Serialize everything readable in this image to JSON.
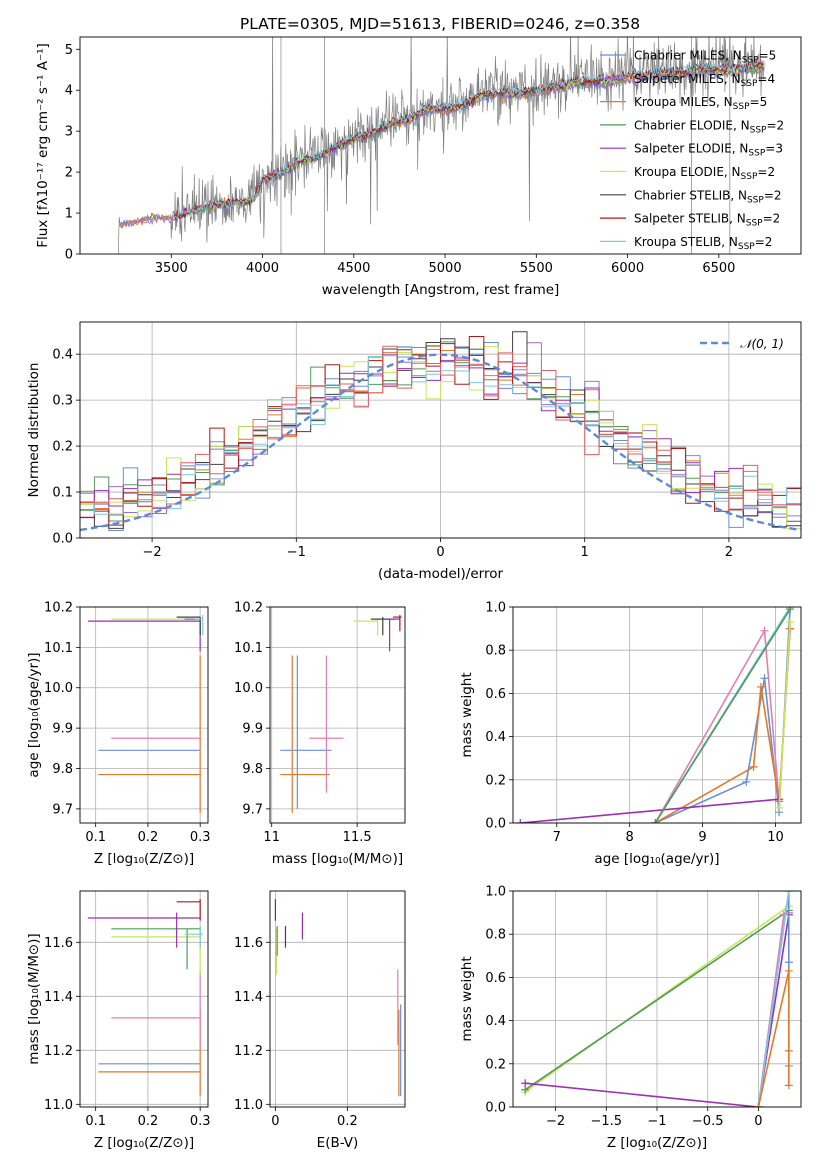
{
  "title": "PLATE=0305, MJD=51613, FIBERID=0246, z=0.358",
  "colors": {
    "chabrier_miles": "#6a8fd8",
    "salpeter_miles": "#9b6bd4",
    "kroupa_miles": "#e07a2a",
    "chabrier_elodie": "#4f9b5a",
    "salpeter_elodie": "#9a2fb0",
    "kroupa_elodie": "#c8e65a",
    "chabrier_stelib": "#404040",
    "salpeter_stelib": "#b01818",
    "kroupa_stelib": "#7fc8e0",
    "data": "#808080",
    "extra_pink": "#e080b0",
    "extra_red": "#e06060",
    "normal": "#5b8bd8"
  },
  "chart_data": [
    {
      "id": "spectrum",
      "type": "line",
      "xlabel": "wavelength [Angstrom, rest frame]",
      "ylabel": "Flux [fλ10⁻¹⁷ erg cm⁻² s⁻¹ A⁻¹]",
      "xlim": [
        3000,
        6950
      ],
      "ylim": [
        0,
        5.3
      ],
      "xticks": [
        3500,
        4000,
        4500,
        5000,
        5500,
        6000,
        6500
      ],
      "yticks": [
        0,
        1,
        2,
        3,
        4,
        5
      ],
      "grid": false,
      "legend_position": "upper right",
      "continuum": [
        [
          3210,
          0
        ],
        [
          3215,
          0.75
        ],
        [
          3300,
          0.8
        ],
        [
          3400,
          0.9
        ],
        [
          3500,
          0.9
        ],
        [
          3600,
          1.05
        ],
        [
          3700,
          1.2
        ],
        [
          3800,
          1.25
        ],
        [
          3900,
          1.3
        ],
        [
          3950,
          1.35
        ],
        [
          4000,
          1.85
        ],
        [
          4100,
          2.0
        ],
        [
          4200,
          2.3
        ],
        [
          4300,
          2.4
        ],
        [
          4400,
          2.65
        ],
        [
          4500,
          2.85
        ],
        [
          4600,
          3.0
        ],
        [
          4700,
          3.25
        ],
        [
          4800,
          3.35
        ],
        [
          4900,
          3.6
        ],
        [
          5000,
          3.6
        ],
        [
          5100,
          3.7
        ],
        [
          5200,
          3.95
        ],
        [
          5300,
          4.0
        ],
        [
          5400,
          4.0
        ],
        [
          5500,
          4.05
        ],
        [
          5600,
          4.15
        ],
        [
          5700,
          4.25
        ],
        [
          5800,
          4.3
        ],
        [
          5900,
          4.3
        ],
        [
          6000,
          4.4
        ],
        [
          6100,
          4.45
        ],
        [
          6200,
          4.5
        ],
        [
          6300,
          4.5
        ],
        [
          6400,
          4.6
        ],
        [
          6500,
          4.55
        ],
        [
          6600,
          4.6
        ],
        [
          6700,
          4.65
        ],
        [
          6750,
          4.7
        ]
      ],
      "series": [
        {
          "name": "Chabrier MILES, N",
          "sub": "SSP",
          "suffix": "=5",
          "color": "#6a8fd8"
        },
        {
          "name": "Salpeter MILES, N",
          "sub": "SSP",
          "suffix": "=4",
          "color": "#9b6bd4"
        },
        {
          "name": "Kroupa MILES, N",
          "sub": "SSP",
          "suffix": "=5",
          "color": "#e07a2a"
        },
        {
          "name": "Chabrier ELODIE, N",
          "sub": "SSP",
          "suffix": "=2",
          "color": "#4f9b5a"
        },
        {
          "name": "Salpeter ELODIE, N",
          "sub": "SSP",
          "suffix": "=3",
          "color": "#9a2fb0"
        },
        {
          "name": "Kroupa ELODIE, N",
          "sub": "SSP",
          "suffix": "=2",
          "color": "#c8e65a"
        },
        {
          "name": "Chabrier STELIB, N",
          "sub": "SSP",
          "suffix": "=2",
          "color": "#404040"
        },
        {
          "name": "Salpeter STELIB, N",
          "sub": "SSP",
          "suffix": "=2",
          "color": "#b01818"
        },
        {
          "name": "Kroupa STELIB, N",
          "sub": "SSP",
          "suffix": "=2",
          "color": "#7fc8e0"
        }
      ]
    },
    {
      "id": "residuals",
      "type": "line",
      "xlabel": "(data-model)/error",
      "ylabel": "Normed distribution",
      "xlim": [
        -2.5,
        2.5
      ],
      "ylim": [
        0,
        0.47
      ],
      "xticks": [
        -2,
        -1,
        0,
        1,
        2
      ],
      "yticks": [
        0.0,
        0.1,
        0.2,
        0.3,
        0.4
      ],
      "grid": true,
      "legend": "𝒩(0, 1)",
      "legend_position": "upper right"
    },
    {
      "id": "age_vs_Z",
      "type": "scatter",
      "xlabel": "Z [log₁₀(Z/Z⊙)]",
      "ylabel": "age  [log₁₀(age/yr)]",
      "xlim": [
        0.07,
        0.315
      ],
      "ylim": [
        9.665,
        10.2
      ],
      "xticks": [
        0.1,
        0.2,
        0.3
      ],
      "yticks": [
        9.7,
        9.8,
        9.9,
        10.0,
        10.1,
        10.2
      ],
      "grid": true,
      "points": [
        {
          "x": 0.3,
          "y": 9.845,
          "xlo": 0.105,
          "xhi": 0.3,
          "ylo": 9.845,
          "yhi": 9.845,
          "color": "#6a8fd8"
        },
        {
          "x": 0.3,
          "y": 9.785,
          "xlo": 0.105,
          "xhi": 0.3,
          "ylo": 9.69,
          "yhi": 10.08,
          "color": "#e07a2a"
        },
        {
          "x": 0.3,
          "y": 9.875,
          "xlo": 0.13,
          "xhi": 0.3,
          "ylo": 9.875,
          "yhi": 9.875,
          "color": "#e080b0"
        },
        {
          "x": 0.3,
          "y": 10.165,
          "xlo": 0.085,
          "xhi": 0.3,
          "ylo": 10.09,
          "yhi": 10.17,
          "color": "#9a2fb0"
        },
        {
          "x": 0.3,
          "y": 10.17,
          "xlo": 0.13,
          "xhi": 0.3,
          "ylo": 10.13,
          "yhi": 10.175,
          "color": "#c8e65a"
        },
        {
          "x": 0.3,
          "y": 10.17,
          "xlo": 0.27,
          "xhi": 0.3,
          "ylo": 10.13,
          "yhi": 10.175,
          "color": "#4f9b5a"
        },
        {
          "x": 0.3,
          "y": 10.175,
          "xlo": 0.255,
          "xhi": 0.3,
          "ylo": 10.13,
          "yhi": 10.175,
          "color": "#404040"
        },
        {
          "x": 0.305,
          "y": 10.17,
          "xlo": 0.29,
          "xhi": 0.305,
          "ylo": 10.13,
          "yhi": 10.18,
          "color": "#7fc8e0"
        }
      ]
    },
    {
      "id": "age_vs_mass",
      "type": "scatter",
      "xlabel": "mass [log₁₀(M/M⊙)]",
      "ylabel": "",
      "xlim": [
        10.99,
        11.78
      ],
      "ylim": [
        9.665,
        10.2
      ],
      "xticks": [
        11.0,
        11.5
      ],
      "yticks": [
        9.7,
        9.8,
        9.9,
        10.0,
        10.1,
        10.2
      ],
      "grid": true,
      "points": [
        {
          "x": 11.15,
          "y": 9.845,
          "xlo": 11.05,
          "xhi": 11.35,
          "ylo": 9.7,
          "yhi": 10.08,
          "color": "#6a8fd8"
        },
        {
          "x": 11.12,
          "y": 9.785,
          "xlo": 11.05,
          "xhi": 11.34,
          "ylo": 9.69,
          "yhi": 10.08,
          "color": "#e07a2a"
        },
        {
          "x": 11.32,
          "y": 9.875,
          "xlo": 11.22,
          "xhi": 11.42,
          "ylo": 9.74,
          "yhi": 10.08,
          "color": "#e080b0"
        },
        {
          "x": 11.62,
          "y": 10.165,
          "xlo": 11.48,
          "xhi": 11.62,
          "ylo": 10.13,
          "yhi": 10.17,
          "color": "#c8e65a"
        },
        {
          "x": 11.65,
          "y": 10.17,
          "xlo": 11.58,
          "xhi": 11.72,
          "ylo": 10.13,
          "yhi": 10.175,
          "color": "#404040"
        },
        {
          "x": 11.69,
          "y": 10.17,
          "xlo": 11.69,
          "xhi": 11.75,
          "ylo": 10.09,
          "yhi": 10.17,
          "color": "#9a2fb0"
        },
        {
          "x": 11.75,
          "y": 10.175,
          "xlo": 11.71,
          "xhi": 11.76,
          "ylo": 10.14,
          "yhi": 10.18,
          "color": "#b01818"
        }
      ]
    },
    {
      "id": "weight_vs_age",
      "type": "line",
      "xlabel": "age  [log₁₀(age/yr)]",
      "ylabel": "mass weight",
      "xlim": [
        6.4,
        10.35
      ],
      "ylim": [
        0,
        1
      ],
      "xticks": [
        7,
        8,
        9,
        10
      ],
      "yticks": [
        0.0,
        0.2,
        0.4,
        0.6,
        0.8,
        1.0
      ],
      "grid": true,
      "series": [
        {
          "color": "#e080b0",
          "values": [
            [
              8.35,
              0
            ],
            [
              9.85,
              0.89
            ],
            [
              10.05,
              0.1
            ],
            [
              10.2,
              0.9
            ]
          ]
        },
        {
          "color": "#6a8fd8",
          "values": [
            [
              8.35,
              0
            ],
            [
              9.6,
              0.19
            ],
            [
              9.85,
              0.67
            ],
            [
              10.05,
              0.05
            ],
            [
              10.2,
              1.0
            ]
          ]
        },
        {
          "color": "#e07a2a",
          "values": [
            [
              8.35,
              0
            ],
            [
              9.7,
              0.26
            ],
            [
              9.8,
              0.63
            ],
            [
              10.05,
              0.1
            ],
            [
              10.2,
              0.9
            ]
          ]
        },
        {
          "color": "#9a2fb0",
          "values": [
            [
              6.5,
              0
            ],
            [
              10.05,
              0.11
            ]
          ]
        },
        {
          "color": "#7fc8e0",
          "values": [
            [
              8.35,
              0
            ],
            [
              10.2,
              1.0
            ]
          ]
        },
        {
          "color": "#c8e65a",
          "values": [
            [
              10.05,
              0.07
            ],
            [
              10.2,
              0.93
            ]
          ]
        },
        {
          "color": "#4f9b5a",
          "values": [
            [
              8.35,
              0
            ],
            [
              10.2,
              0.99
            ]
          ]
        }
      ]
    },
    {
      "id": "mass_vs_Z",
      "type": "scatter",
      "xlabel": "Z [log₁₀(Z/Z⊙)]",
      "ylabel": "mass [log₁₀(M/M⊙)]",
      "xlim": [
        0.07,
        0.315
      ],
      "ylim": [
        10.99,
        11.79
      ],
      "xticks": [
        0.1,
        0.2,
        0.3
      ],
      "yticks": [
        11.0,
        11.2,
        11.4,
        11.6
      ],
      "grid": true,
      "points": [
        {
          "x": 0.3,
          "y": 11.15,
          "xlo": 0.105,
          "xhi": 0.3,
          "ylo": 11.15,
          "yhi": 11.15,
          "color": "#6a8fd8"
        },
        {
          "x": 0.3,
          "y": 11.12,
          "xlo": 0.105,
          "xhi": 0.3,
          "ylo": 11.03,
          "yhi": 11.35,
          "color": "#e07a2a"
        },
        {
          "x": 0.3,
          "y": 11.32,
          "xlo": 0.13,
          "xhi": 0.3,
          "ylo": 11.22,
          "yhi": 11.5,
          "color": "#e080b0"
        },
        {
          "x": 0.3,
          "y": 11.69,
          "xlo": 0.085,
          "xhi": 0.3,
          "ylo": 11.69,
          "yhi": 11.69,
          "color": "#9a2fb0"
        },
        {
          "x": 0.3,
          "y": 11.65,
          "xlo": 0.13,
          "xhi": 0.3,
          "ylo": 11.58,
          "yhi": 11.65,
          "color": "#4f9b5a"
        },
        {
          "x": 0.3,
          "y": 11.62,
          "xlo": 0.13,
          "xhi": 0.3,
          "ylo": 11.48,
          "yhi": 11.63,
          "color": "#c8e65a"
        },
        {
          "x": 0.3,
          "y": 11.75,
          "xlo": 0.255,
          "xhi": 0.3,
          "ylo": 11.68,
          "yhi": 11.76,
          "color": "#b01818"
        },
        {
          "x": 0.255,
          "y": 11.65,
          "xlo": 0.255,
          "xhi": 0.255,
          "ylo": 11.58,
          "yhi": 11.71,
          "color": "#9a2fb0"
        },
        {
          "x": 0.275,
          "y": 11.63,
          "xlo": 0.275,
          "xhi": 0.275,
          "ylo": 11.5,
          "yhi": 11.65,
          "color": "#4f9b5a"
        },
        {
          "x": 0.3,
          "y": 11.63,
          "xlo": 0.27,
          "xhi": 0.305,
          "ylo": 11.58,
          "yhi": 11.66,
          "color": "#7fc8e0"
        }
      ]
    },
    {
      "id": "mass_vs_ebv",
      "type": "scatter",
      "xlabel": "E(B-V)",
      "ylabel": "",
      "xlim": [
        -0.015,
        0.36
      ],
      "ylim": [
        10.99,
        11.79
      ],
      "xticks": [
        0.0,
        0.2
      ],
      "yticks": [
        11.0,
        11.2,
        11.4,
        11.6
      ],
      "grid": true,
      "points": [
        {
          "x": 0.0,
          "y": 11.72,
          "xlo": 0.0,
          "xhi": 0.0,
          "ylo": 11.68,
          "yhi": 11.76,
          "color": "#b01818"
        },
        {
          "x": 0.003,
          "y": 11.58,
          "xlo": 0.003,
          "xhi": 0.003,
          "ylo": 11.48,
          "yhi": 11.65,
          "color": "#c8e65a"
        },
        {
          "x": 0.005,
          "y": 11.6,
          "xlo": 0.005,
          "xhi": 0.005,
          "ylo": 11.55,
          "yhi": 11.66,
          "color": "#4f9b5a"
        },
        {
          "x": 0.028,
          "y": 11.61,
          "xlo": 0.028,
          "xhi": 0.028,
          "ylo": 11.58,
          "yhi": 11.66,
          "color": "#404040"
        },
        {
          "x": 0.075,
          "y": 11.65,
          "xlo": 0.075,
          "xhi": 0.075,
          "ylo": 11.61,
          "yhi": 11.71,
          "color": "#9a2fb0"
        },
        {
          "x": 0.34,
          "y": 11.3,
          "xlo": 0.34,
          "xhi": 0.34,
          "ylo": 11.22,
          "yhi": 11.5,
          "color": "#e080b0"
        },
        {
          "x": 0.343,
          "y": 11.2,
          "xlo": 0.343,
          "xhi": 0.343,
          "ylo": 11.03,
          "yhi": 11.35,
          "color": "#e07a2a"
        },
        {
          "x": 0.348,
          "y": 11.2,
          "xlo": 0.348,
          "xhi": 0.348,
          "ylo": 11.03,
          "yhi": 11.37,
          "color": "#6a8fd8"
        }
      ]
    },
    {
      "id": "weight_vs_Z",
      "type": "line",
      "xlabel": "Z [log₁₀(Z/Z⊙)]",
      "ylabel": "mass weight",
      "xlim": [
        -2.42,
        0.42
      ],
      "ylim": [
        0,
        1
      ],
      "xticks": [
        -2.0,
        -1.5,
        -1.0,
        -0.5,
        0.0
      ],
      "yticks": [
        0.0,
        0.2,
        0.4,
        0.6,
        0.8,
        1.0
      ],
      "grid": true,
      "series": [
        {
          "color": "#c8e65a",
          "values": [
            [
              -2.3,
              0.07
            ],
            [
              0.3,
              0.93
            ]
          ]
        },
        {
          "color": "#4f9b5a",
          "values": [
            [
              -2.3,
              0.08
            ],
            [
              0.3,
              0.91
            ]
          ]
        },
        {
          "color": "#9a2fb0",
          "values": [
            [
              -2.3,
              0.11
            ],
            [
              0.0,
              0.0
            ],
            [
              0.3,
              0.89
            ]
          ]
        },
        {
          "color": "#e080b0",
          "values": [
            [
              0.0,
              0.0
            ],
            [
              0.25,
              0.89
            ],
            [
              0.3,
              0.9
            ]
          ]
        },
        {
          "color": "#6a8fd8",
          "values": [
            [
              0.0,
              0.0
            ],
            [
              0.3,
              1.0
            ],
            [
              0.3,
              0.67
            ],
            [
              0.3,
              0.19
            ]
          ]
        },
        {
          "color": "#7fc8e0",
          "values": [
            [
              0.0,
              0.0
            ],
            [
              0.3,
              1.0
            ]
          ]
        },
        {
          "color": "#e07a2a",
          "values": [
            [
              0.0,
              0.0
            ],
            [
              0.3,
              0.63
            ],
            [
              0.3,
              0.26
            ],
            [
              0.3,
              0.1
            ]
          ]
        }
      ]
    }
  ]
}
